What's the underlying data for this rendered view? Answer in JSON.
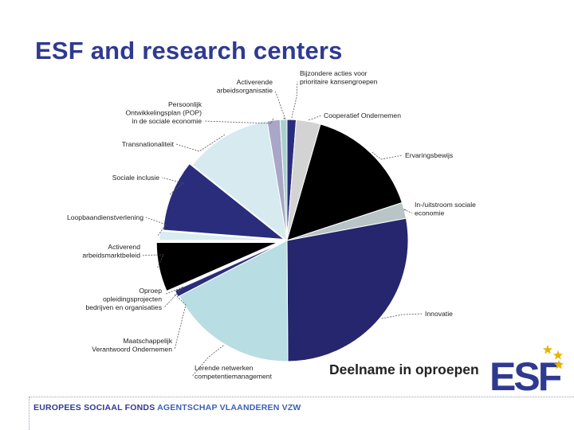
{
  "title": "ESF and research centers",
  "subtitle": "Deelname in oproepen",
  "footer": {
    "part1": "EUROPEES SOCIAAL FONDS",
    "part2": "AGENTSCHAP VLAANDEREN VZW"
  },
  "logo": {
    "text": "ESF",
    "colors": {
      "letters": "#2f3a8f",
      "stars": "#e8b400"
    }
  },
  "chart_data": {
    "type": "pie",
    "start": "top, clockwise",
    "legend": "none (leader-line labels)",
    "unit": "share of participations (%)",
    "slices": [
      {
        "label": "Bijzondere acties voor\nprioritaire kansengroepen",
        "value": 1.2,
        "color": "#2a2d7c"
      },
      {
        "label": "Cooperatief Ondernemen",
        "value": 3.2,
        "color": "#d3d3d3"
      },
      {
        "label": "Ervaringsbewijs",
        "value": 15.3,
        "color": "#000000"
      },
      {
        "label": "In-/uitstroom sociale\neconomie",
        "value": 2.1,
        "color": "#b9c4c6"
      },
      {
        "label": "Innovatie",
        "value": 27.5,
        "color": "#25266e"
      },
      {
        "label": "Lerende netwerken\ncompetentiemanagement",
        "value": 17.3,
        "color": "#b8dde2"
      },
      {
        "label": "Maatschappelijk\nVerantwoord Ondernemen",
        "value": 0.9,
        "color": "#2a2d7c"
      },
      {
        "label": "Oproep\nopleidingsprojecten\nbedrijven en organisaties",
        "value": 0.1,
        "color": "#ffffff"
      },
      {
        "label": "Activerend\narbeidsmarktbeleid",
        "value": 6.5,
        "color": "#000000"
      },
      {
        "label": "Loopbaandienstverlening",
        "value": 1.2,
        "color": "#d9ecf0"
      },
      {
        "label": "Sociale inclusie",
        "value": 9.4,
        "color": "#2a2d7c"
      },
      {
        "label": "Transnationaliteit",
        "value": 11.5,
        "color": "#d6eaef"
      },
      {
        "label": "Persoonlijk\nOntwikkelingsplan (POP)\nin de sociale economie",
        "value": 1.7,
        "color": "#a9a6c8"
      },
      {
        "label": "Activerende\narbeidsorganisatie",
        "value": 0.9,
        "color": "#a9cfcf"
      }
    ]
  }
}
